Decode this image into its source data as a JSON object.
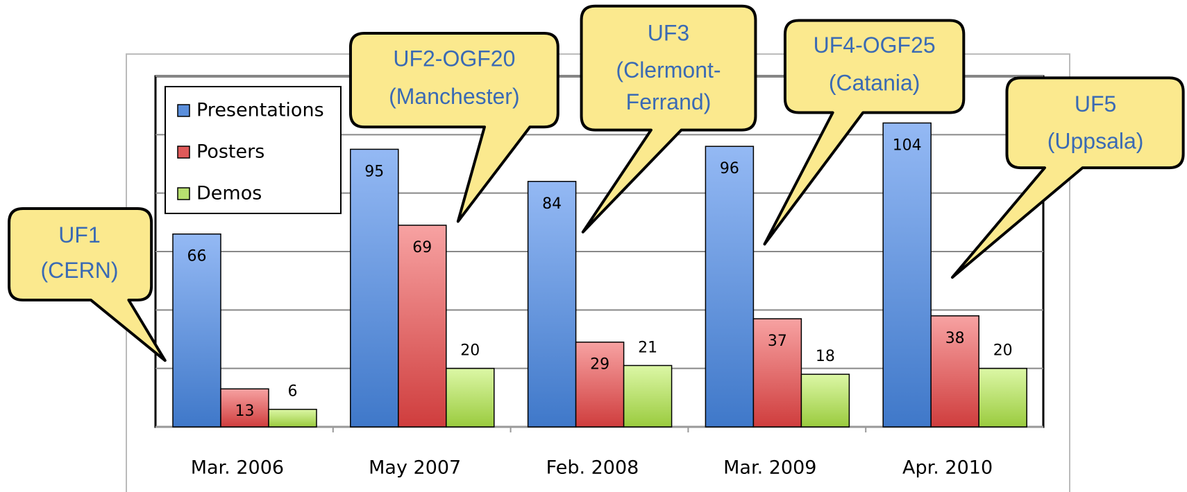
{
  "chart_data": {
    "type": "bar",
    "categories": [
      "Mar. 2006",
      "May 2007",
      "Feb. 2008",
      "Mar. 2009",
      "Apr. 2010"
    ],
    "series": [
      {
        "name": "Presentations",
        "color": "#5b8fdc",
        "values": [
          66,
          95,
          84,
          96,
          104
        ]
      },
      {
        "name": "Posters",
        "color": "#e05a5a",
        "values": [
          13,
          69,
          29,
          37,
          38
        ]
      },
      {
        "name": "Demos",
        "color": "#b8e070",
        "values": [
          6,
          20,
          21,
          18,
          20
        ]
      }
    ],
    "ylim": [
      0,
      120
    ],
    "yticks": [
      0,
      20,
      40,
      60,
      80,
      100,
      120
    ],
    "grid": true,
    "annotations": [
      {
        "lines": [
          "UF1",
          "(CERN)"
        ]
      },
      {
        "lines": [
          "UF2-OGF20",
          "(Manchester)"
        ]
      },
      {
        "lines": [
          "UF3",
          "(Clermont-",
          "Ferrand)"
        ]
      },
      {
        "lines": [
          "UF4-OGF25",
          "(Catania)"
        ]
      },
      {
        "lines": [
          "UF5",
          "(Uppsala)"
        ]
      }
    ]
  }
}
